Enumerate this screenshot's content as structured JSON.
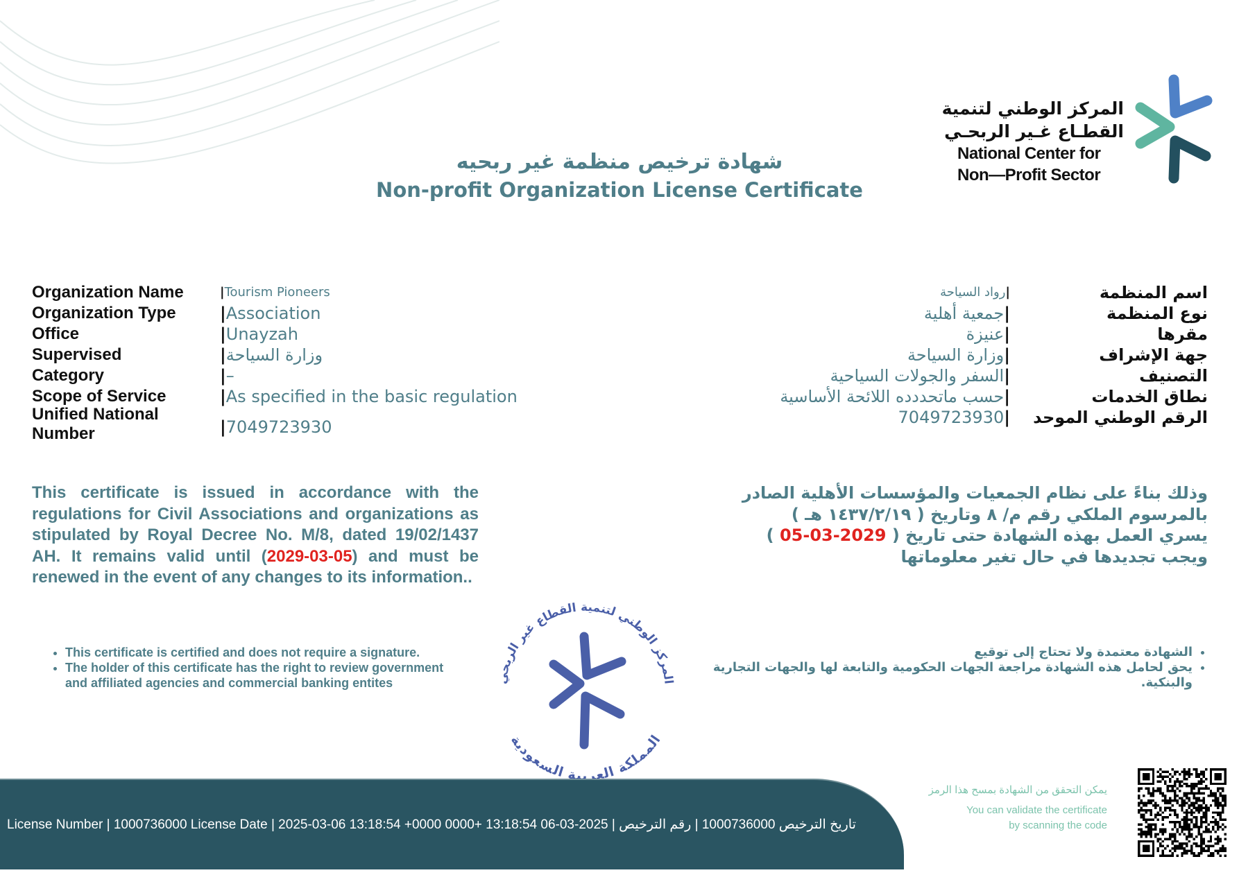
{
  "colors": {
    "accent": "#4f7e89",
    "label": "#111111",
    "highlight": "#e0231f",
    "footer_bg": "#2a5562",
    "seal": "#4a5fa8",
    "logo_blue": "#4f81c7",
    "logo_green": "#5fb5a0",
    "logo_dark": "#23505f",
    "verify_text": "#7cc3ac"
  },
  "logo": {
    "arabic_line1": "المركز الوطني لتنمية",
    "arabic_line2": "القطـاع غـير الربحـي",
    "english_line1": "National Center for",
    "english_line2": "Non—Profit Sector"
  },
  "title": {
    "arabic": "شهادة ترخيص منظمة غير ربحيه",
    "english": "Non-profit Organization License Certificate"
  },
  "fields_en": [
    {
      "label": "Organization Name",
      "value": "Tourism Pioneers"
    },
    {
      "label": "Organization Type",
      "value": "Association"
    },
    {
      "label": "Office",
      "value": "Unayzah"
    },
    {
      "label": "Supervised",
      "value": "وزارة السياحة"
    },
    {
      "label": "Category",
      "value": "–"
    },
    {
      "label": "Scope of Service",
      "value": "As specified in the basic regulation"
    },
    {
      "label": "Unified National Number",
      "value": "7049723930"
    }
  ],
  "fields_ar": [
    {
      "label": "اسم المنظمة",
      "value": "رواد السياحة"
    },
    {
      "label": "نوع المنظمة",
      "value": "جمعية أهلية"
    },
    {
      "label": "مقرها",
      "value": "عنيزة"
    },
    {
      "label": "جهة الإشراف",
      "value": "وزارة السياحة"
    },
    {
      "label": "التصنيف",
      "value": "السفر والجولات السياحية"
    },
    {
      "label": "نطاق الخدمات",
      "value": "حسب ماتحددده اللائحة الأساسية"
    },
    {
      "label": "الرقم الوطني الموحد",
      "value": "7049723930"
    }
  ],
  "paragraph_en": {
    "before": "This certificate is issued in accordance with the regulations for Civil Associations and organizations as stipulated by Royal Decree No. M/8, dated 19/02/1437 AH. It remains valid until (",
    "date": "2029-03-05",
    "after": ") and must be renewed in the event of any changes to its information.."
  },
  "paragraph_ar": {
    "line1": "وذلك بناءً على نظام الجمعيات والمؤسسات الأهلية الصادر",
    "line2": "بالمرسوم الملكي رقم م/ ٨ وتاريخ ( ١٤٣٧/٢/١٩ هـ )",
    "line3_before": "يسري العمل بهذه الشهادة حتى تاريخ (",
    "date": "05-03-2029",
    "line3_after": ")",
    "line4": "ويجب تجديدها في حال تغير معلوماتها"
  },
  "bullets_en": [
    "This certificate is certified and does not require a signature.",
    "The holder of this certificate has the right to review government",
    "and affiliated agencies and commercial banking entites"
  ],
  "bullets_ar": [
    "الشهادة معتمدة ولا تحتاج إلى توقيع",
    "يحق لحامل هذه الشهادة مراجعة الجهات الحكومية والتابعة لها والجهات التجارية والبنكية."
  ],
  "seal": {
    "top_text": "المركز الوطني لتنمية القطاع غير الربحي",
    "bottom_text": "المملكة العربية السعودية"
  },
  "footer": {
    "text": "License Number | 1000736000   License Date | 2025-03-06 13:18:54 +0000    0000+ 13:18:54 06-03-2025 | تاريخ الترخيص    1000736000 | رقم الترخيص"
  },
  "verify": {
    "arabic": "يمكن التحقق من الشهادة بمسح هذا الرمز",
    "english_line1": "You can validate the certificate",
    "english_line2": "by scanning the code"
  }
}
